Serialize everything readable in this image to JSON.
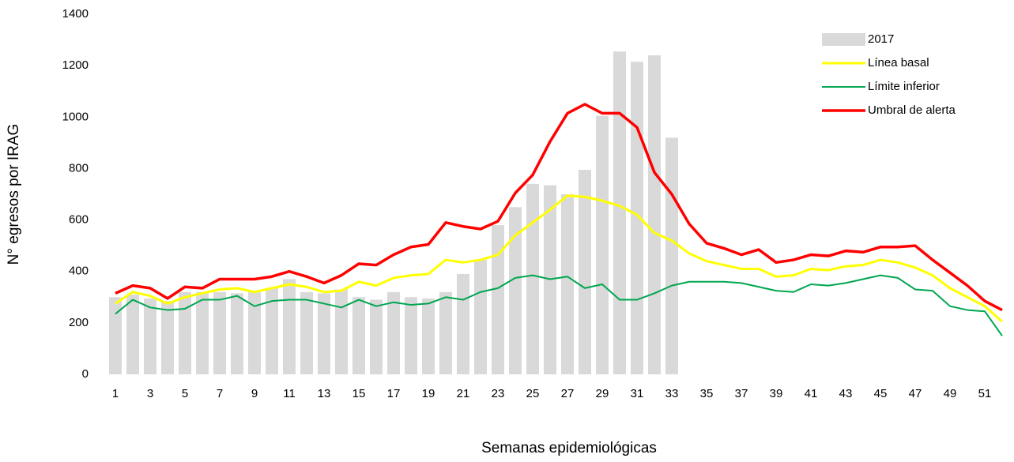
{
  "chart_data": {
    "type": "combo",
    "x_label": "Semanas epidemiológicas",
    "y_label": "N° egresos por IRAG",
    "categories": [
      "1",
      null,
      "3",
      null,
      "5",
      null,
      "7",
      null,
      "9",
      null,
      "11",
      null,
      "13",
      null,
      "15",
      null,
      "17",
      null,
      "19",
      null,
      "21",
      null,
      "23",
      null,
      "25",
      null,
      "27",
      null,
      "29",
      null,
      "31",
      null,
      "33",
      null,
      "35",
      null,
      "37",
      null,
      "39",
      null,
      "41",
      null,
      "43",
      null,
      "45",
      null,
      "47",
      null,
      "49",
      null,
      "51",
      null
    ],
    "series": [
      {
        "name": "2017",
        "type": "bar",
        "color": "#d9d9d9",
        "values": [
          300,
          310,
          295,
          285,
          320,
          320,
          320,
          315,
          320,
          335,
          370,
          320,
          315,
          330,
          300,
          290,
          320,
          300,
          295,
          320,
          390,
          445,
          580,
          650,
          740,
          735,
          700,
          795,
          1005,
          1255,
          1215,
          1240,
          920,
          null,
          null,
          null,
          null,
          null,
          null,
          null,
          null,
          null,
          null,
          null,
          null,
          null,
          null,
          null,
          null,
          null,
          null,
          null
        ]
      },
      {
        "name": "Línea basal",
        "type": "line",
        "color": "#ffff00",
        "width": 3,
        "values": [
          275,
          320,
          305,
          275,
          300,
          315,
          330,
          335,
          320,
          335,
          350,
          340,
          320,
          325,
          360,
          345,
          375,
          385,
          390,
          445,
          435,
          445,
          465,
          540,
          590,
          640,
          695,
          690,
          675,
          655,
          620,
          550,
          520,
          470,
          440,
          425,
          410,
          410,
          380,
          385,
          410,
          405,
          420,
          425,
          445,
          435,
          415,
          385,
          335,
          300,
          265,
          205
        ]
      },
      {
        "name": "Límite inferior",
        "type": "line",
        "color": "#00a650",
        "width": 2,
        "values": [
          235,
          290,
          260,
          250,
          255,
          290,
          290,
          305,
          265,
          285,
          290,
          290,
          275,
          260,
          290,
          265,
          280,
          270,
          275,
          300,
          290,
          320,
          335,
          375,
          385,
          370,
          380,
          335,
          350,
          290,
          290,
          315,
          345,
          360,
          360,
          360,
          355,
          340,
          325,
          320,
          350,
          345,
          355,
          370,
          385,
          375,
          330,
          325,
          265,
          250,
          245,
          150
        ]
      },
      {
        "name": "Umbral de alerta",
        "type": "line",
        "color": "#ff0000",
        "width": 3.5,
        "values": [
          315,
          345,
          335,
          295,
          340,
          335,
          370,
          370,
          370,
          380,
          400,
          380,
          355,
          385,
          430,
          425,
          465,
          495,
          505,
          590,
          575,
          565,
          595,
          705,
          775,
          905,
          1015,
          1050,
          1015,
          1015,
          960,
          785,
          700,
          585,
          510,
          490,
          465,
          485,
          435,
          445,
          465,
          460,
          480,
          475,
          495,
          495,
          500,
          445,
          395,
          345,
          285,
          250
        ]
      }
    ],
    "ylim": [
      0,
      1400
    ],
    "yticks": [
      0,
      200,
      400,
      600,
      800,
      1000,
      1200,
      1400
    ],
    "grid": false,
    "legend": "top-right"
  }
}
